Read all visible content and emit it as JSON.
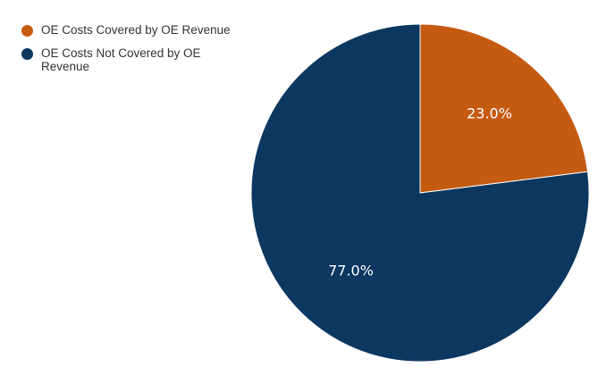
{
  "chart_data": {
    "type": "pie",
    "title": "",
    "categories": [
      "OE Costs Covered by OE Revenue",
      "OE Costs Not Covered by OE Revenue"
    ],
    "values": [
      23.0,
      77.0
    ],
    "labels": [
      "23.0%",
      "77.0%"
    ],
    "colors": [
      "#c55a11",
      "#0b3760"
    ],
    "legend_position": "top-left",
    "start_angle": "12 o'clock",
    "direction": "clockwise"
  }
}
